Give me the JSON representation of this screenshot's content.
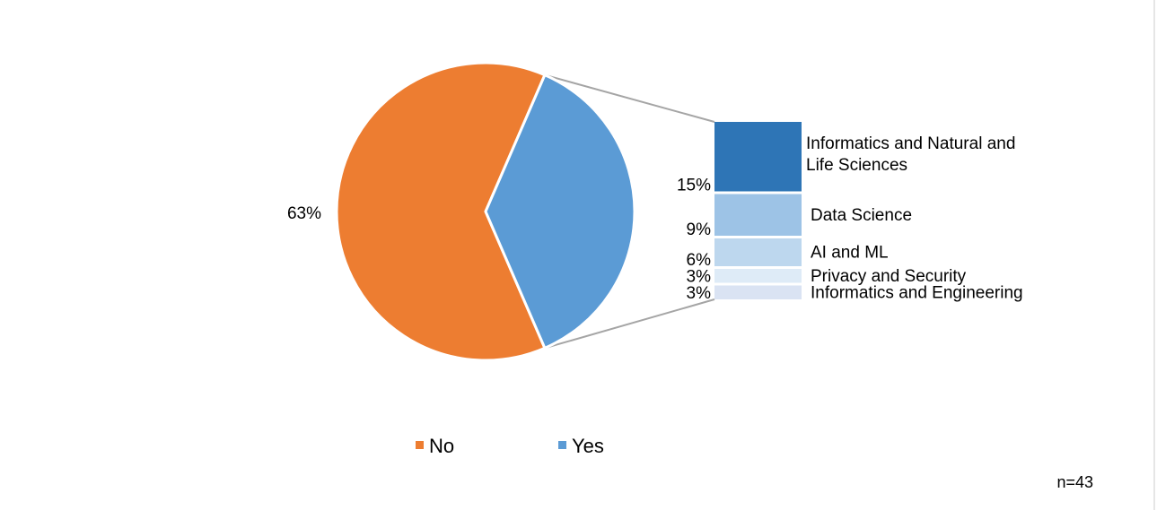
{
  "chart_data": {
    "type": "pie",
    "subtype": "bar-of-pie",
    "slices": [
      {
        "name": "No",
        "value": 63,
        "label": "63%",
        "color": "#ED7D31"
      },
      {
        "name": "Yes",
        "value": 37,
        "color": "#5B9BD5",
        "exploded_into_bar": true
      }
    ],
    "breakdown": [
      {
        "name": "Informatics and Natural and Life Sciences",
        "lines": [
          "Informatics and Natural and",
          "Life Sciences"
        ],
        "value": 15,
        "label": "15%",
        "color": "#2E75B6"
      },
      {
        "name": "Data Science",
        "lines": [
          "Data Science"
        ],
        "value": 9,
        "label": "9%",
        "color": "#9DC3E6"
      },
      {
        "name": "AI and ML",
        "lines": [
          "AI and ML"
        ],
        "value": 6,
        "label": "6%",
        "color": "#BDD7EE"
      },
      {
        "name": "Privacy and Security",
        "lines": [
          "Privacy and Security"
        ],
        "value": 3,
        "label": "3%",
        "color": "#DEEBF7"
      },
      {
        "name": "Informatics and Engineering",
        "lines": [
          "Informatics and Engineering"
        ],
        "value": 3,
        "label": "3%",
        "color": "#DAE3F3"
      }
    ],
    "legend": {
      "position": "bottom",
      "items": [
        {
          "label": "No",
          "color": "#ED7D31"
        },
        {
          "label": "Yes",
          "color": "#5B9BD5"
        }
      ]
    },
    "connector_color": "#A5A5A5"
  },
  "note": "n=43"
}
